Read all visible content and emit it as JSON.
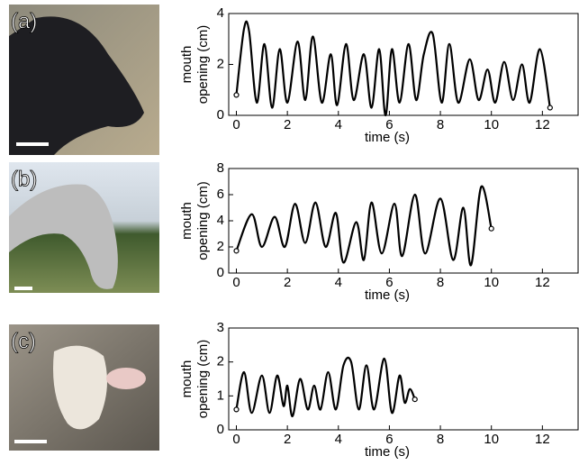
{
  "chart_data": [
    {
      "type": "line",
      "label": "(a)",
      "ylabel": [
        "mouth",
        "opening (cm)"
      ],
      "xlabel": "time (s)",
      "xlim": [
        -0.3,
        13.4
      ],
      "xticks": [
        0,
        2,
        4,
        6,
        8,
        10,
        12
      ],
      "ylim": [
        0,
        4
      ],
      "yticks": [
        0,
        2,
        4
      ],
      "series": [
        {
          "color": "#000000",
          "x": [
            0,
            0.3,
            0.5,
            0.8,
            1.1,
            1.4,
            1.7,
            2.0,
            2.4,
            2.7,
            3.0,
            3.35,
            3.7,
            3.95,
            4.3,
            4.6,
            5.0,
            5.3,
            5.6,
            5.85,
            6.1,
            6.4,
            6.75,
            7.05,
            7.35,
            7.7,
            8.05,
            8.35,
            8.7,
            9.15,
            9.5,
            9.85,
            10.15,
            10.5,
            10.85,
            11.2,
            11.5,
            11.9,
            12.3
          ],
          "values": [
            0.8,
            3.4,
            3.3,
            0.5,
            2.8,
            0.3,
            2.6,
            0.5,
            2.9,
            0.6,
            3.1,
            0.5,
            2.4,
            0.4,
            2.8,
            0.6,
            2.4,
            0.3,
            2.6,
            0.0,
            2.6,
            0.5,
            2.8,
            0.6,
            2.4,
            3.2,
            0.5,
            2.8,
            0.5,
            2.2,
            0.6,
            1.8,
            0.5,
            2.1,
            0.6,
            2.0,
            0.5,
            2.6,
            0.3
          ]
        }
      ]
    },
    {
      "type": "line",
      "label": "(b)",
      "ylabel": [
        "mouth",
        "opening (cm)"
      ],
      "xlabel": "time (s)",
      "xlim": [
        -0.3,
        13.4
      ],
      "xticks": [
        0,
        2,
        4,
        6,
        8,
        10,
        12
      ],
      "ylim": [
        0,
        8
      ],
      "yticks": [
        0,
        2,
        4,
        6,
        8
      ],
      "series": [
        {
          "color": "#000000",
          "x": [
            0,
            0.6,
            1.0,
            1.5,
            1.9,
            2.3,
            2.7,
            3.1,
            3.5,
            3.9,
            4.2,
            4.7,
            5.0,
            5.3,
            5.7,
            6.2,
            6.5,
            7.0,
            7.4,
            8.0,
            8.5,
            8.9,
            9.2,
            9.6,
            10.0
          ],
          "values": [
            1.7,
            4.5,
            2.0,
            4.3,
            2.0,
            5.3,
            2.3,
            5.4,
            2.0,
            4.6,
            0.8,
            3.9,
            1.0,
            5.4,
            1.5,
            5.3,
            1.3,
            6.0,
            1.5,
            5.7,
            1.0,
            5.0,
            0.6,
            6.6,
            3.4
          ]
        }
      ]
    },
    {
      "type": "line",
      "label": "(c)",
      "ylabel": [
        "mouth",
        "opening (cm)"
      ],
      "xlabel": "time (s)",
      "xlim": [
        -0.3,
        13.4
      ],
      "xticks": [
        0,
        2,
        4,
        6,
        8,
        10,
        12
      ],
      "ylim": [
        0,
        3
      ],
      "yticks": [
        0,
        1,
        2,
        3
      ],
      "series": [
        {
          "color": "#000000",
          "x": [
            0,
            0.3,
            0.6,
            1.0,
            1.3,
            1.6,
            1.85,
            2.0,
            2.2,
            2.5,
            2.8,
            3.05,
            3.3,
            3.6,
            3.9,
            4.2,
            4.5,
            4.8,
            5.1,
            5.4,
            5.8,
            6.1,
            6.4,
            6.6,
            6.8,
            7.0
          ],
          "values": [
            0.6,
            1.7,
            0.5,
            1.6,
            0.5,
            1.6,
            0.7,
            1.3,
            0.4,
            1.5,
            0.6,
            1.3,
            0.6,
            1.7,
            0.6,
            1.9,
            2.0,
            0.6,
            1.9,
            0.6,
            2.1,
            0.5,
            1.6,
            0.8,
            1.2,
            0.9
          ]
        }
      ]
    }
  ]
}
